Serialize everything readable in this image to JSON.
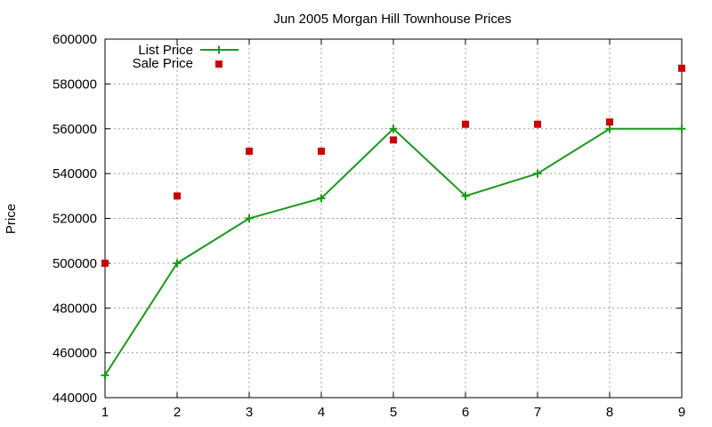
{
  "chart_data": {
    "type": "line",
    "title": "Jun 2005 Morgan Hill Townhouse Prices",
    "xlabel": "",
    "ylabel": "Price",
    "xlim": [
      1,
      9
    ],
    "ylim": [
      440000,
      600000
    ],
    "x_ticks": [
      "1",
      "2",
      "3",
      "4",
      "5",
      "6",
      "7",
      "8",
      "9"
    ],
    "y_ticks": [
      "440000",
      "460000",
      "480000",
      "500000",
      "520000",
      "540000",
      "560000",
      "580000",
      "600000"
    ],
    "grid": true,
    "legend_position": "top-left",
    "x": [
      1,
      2,
      3,
      4,
      5,
      6,
      7,
      8,
      9
    ],
    "series": [
      {
        "name": "List Price",
        "style": "line+plus",
        "color": "#1a9a1a",
        "values": [
          450000,
          500000,
          520000,
          529000,
          560000,
          530000,
          540000,
          560000,
          560000
        ]
      },
      {
        "name": "Sale Price",
        "style": "square",
        "color": "#cc0000",
        "values": [
          500000,
          530000,
          550000,
          550000,
          555000,
          562000,
          562000,
          563000,
          587000
        ]
      }
    ]
  }
}
